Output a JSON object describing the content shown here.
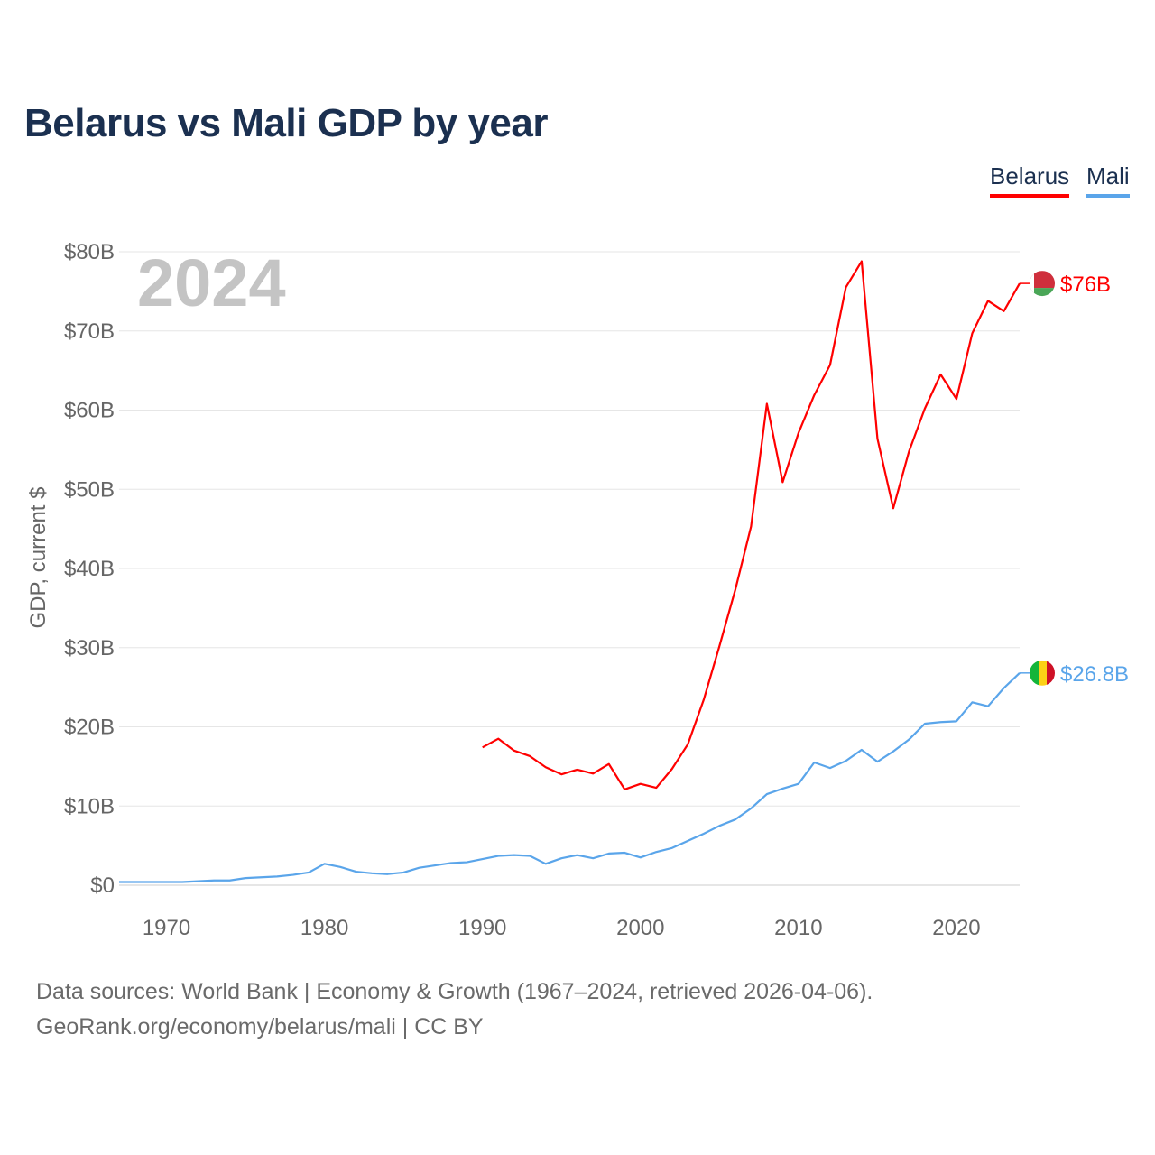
{
  "chart_data": {
    "type": "line",
    "title": "Belarus vs Mali GDP by year",
    "ylabel": "GDP, current $",
    "xlabel": "",
    "year_label": "2024",
    "xlim": [
      1967,
      2024
    ],
    "ylim": [
      0,
      80
    ],
    "grid": true,
    "legend_position": "top-right",
    "x_ticks": [
      1970,
      1980,
      1990,
      2000,
      2010,
      2020
    ],
    "x_tick_labels": [
      "1970",
      "1980",
      "1990",
      "2000",
      "2010",
      "2020"
    ],
    "y_ticks": [
      0,
      10,
      20,
      30,
      40,
      50,
      60,
      70,
      80
    ],
    "y_tick_labels": [
      "$0",
      "$10B",
      "$20B",
      "$30B",
      "$40B",
      "$50B",
      "$60B",
      "$70B",
      "$80B"
    ],
    "series": [
      {
        "name": "Belarus",
        "color": "#ff0000",
        "start_year": 1990,
        "end_label": "$76B",
        "flag": "belarus-flag",
        "values": [
          17.4,
          18.5,
          17.0,
          16.3,
          14.9,
          14.0,
          14.6,
          14.1,
          15.3,
          12.1,
          12.8,
          12.3,
          14.7,
          17.8,
          23.4,
          30.2,
          37.3,
          45.3,
          60.8,
          50.9,
          57.1,
          61.9,
          65.7,
          75.5,
          78.8,
          56.4,
          47.6,
          54.8,
          60.2,
          64.5,
          61.4,
          69.7,
          73.8,
          72.5,
          76.0
        ]
      },
      {
        "name": "Mali",
        "color": "#5aa5ea",
        "start_year": 1967,
        "end_label": "$26.8B",
        "flag": "mali-flag",
        "values": [
          0.4,
          0.4,
          0.4,
          0.4,
          0.4,
          0.5,
          0.6,
          0.6,
          0.9,
          1.0,
          1.1,
          1.3,
          1.6,
          2.7,
          2.3,
          1.7,
          1.5,
          1.4,
          1.6,
          2.2,
          2.5,
          2.8,
          2.9,
          3.3,
          3.7,
          3.8,
          3.7,
          2.7,
          3.4,
          3.8,
          3.4,
          4.0,
          4.1,
          3.5,
          4.2,
          4.7,
          5.6,
          6.5,
          7.5,
          8.3,
          9.7,
          11.5,
          12.2,
          12.8,
          15.5,
          14.8,
          15.7,
          17.1,
          15.6,
          16.9,
          18.4,
          20.4,
          20.6,
          20.7,
          23.1,
          22.6,
          24.9,
          26.8
        ]
      }
    ]
  },
  "footer": {
    "line1": "Data sources: World Bank | Economy & Growth (1967–2024, retrieved 2026-04-06).",
    "line2": "GeoRank.org/economy/belarus/mali | CC BY"
  }
}
